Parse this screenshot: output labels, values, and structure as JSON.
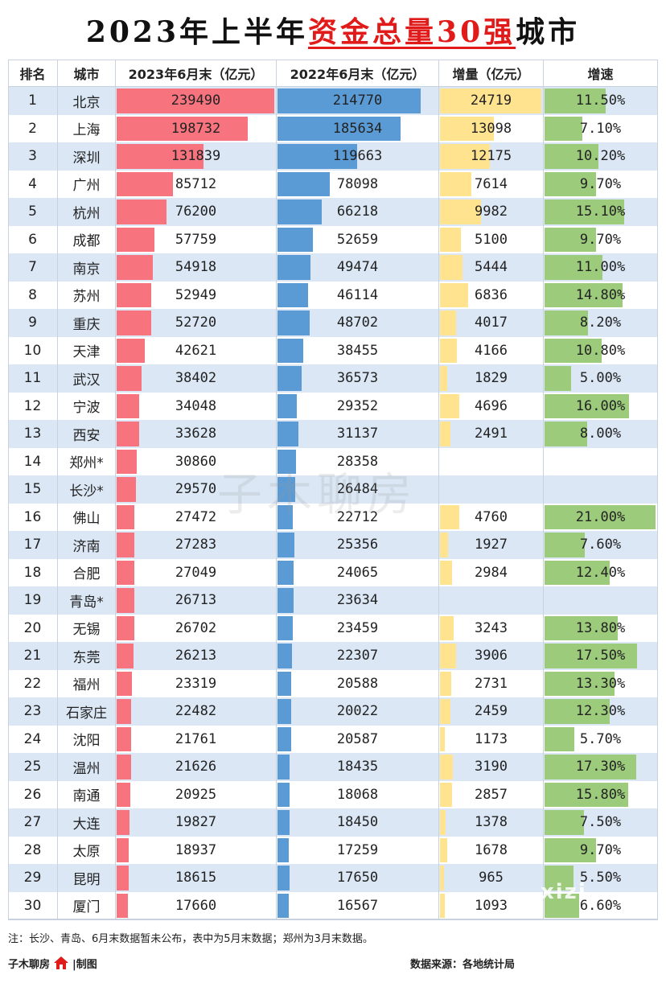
{
  "title": {
    "part1": "2023年上半年",
    "part2": "资金总量30强",
    "part3": "城市"
  },
  "headers": {
    "rank": "排名",
    "city": "城市",
    "y2023": "2023年6月末（亿元）",
    "y2022": "2022年6月末（亿元）",
    "inc": "增量（亿元）",
    "rate": "增速"
  },
  "colors": {
    "red_bar": "#f7747f",
    "blue_bar": "#5b9bd5",
    "yellow_bar": "#ffe38f",
    "green_bar": "#9ccb7c",
    "row_alt": "#dbe7f5",
    "grid": "#c9d3df"
  },
  "chart_data": {
    "type": "table",
    "rows": [
      {
        "rank": "1",
        "city": "北京",
        "y2023": 239490,
        "y2022": 214770,
        "inc": 24719,
        "rate": "11.50%"
      },
      {
        "rank": "2",
        "city": "上海",
        "y2023": 198732,
        "y2022": 185634,
        "inc": 13098,
        "rate": "7.10%"
      },
      {
        "rank": "3",
        "city": "深圳",
        "y2023": 131839,
        "y2022": 119663,
        "inc": 12175,
        "rate": "10.20%"
      },
      {
        "rank": "4",
        "city": "广州",
        "y2023": 85712,
        "y2022": 78098,
        "inc": 7614,
        "rate": "9.70%"
      },
      {
        "rank": "5",
        "city": "杭州",
        "y2023": 76200,
        "y2022": 66218,
        "inc": 9982,
        "rate": "15.10%"
      },
      {
        "rank": "6",
        "city": "成都",
        "y2023": 57759,
        "y2022": 52659,
        "inc": 5100,
        "rate": "9.70%"
      },
      {
        "rank": "7",
        "city": "南京",
        "y2023": 54918,
        "y2022": 49474,
        "inc": 5444,
        "rate": "11.00%"
      },
      {
        "rank": "8",
        "city": "苏州",
        "y2023": 52949,
        "y2022": 46114,
        "inc": 6836,
        "rate": "14.80%"
      },
      {
        "rank": "9",
        "city": "重庆",
        "y2023": 52720,
        "y2022": 48702,
        "inc": 4017,
        "rate": "8.20%"
      },
      {
        "rank": "10",
        "city": "天津",
        "y2023": 42621,
        "y2022": 38455,
        "inc": 4166,
        "rate": "10.80%"
      },
      {
        "rank": "11",
        "city": "武汉",
        "y2023": 38402,
        "y2022": 36573,
        "inc": 1829,
        "rate": "5.00%"
      },
      {
        "rank": "12",
        "city": "宁波",
        "y2023": 34048,
        "y2022": 29352,
        "inc": 4696,
        "rate": "16.00%"
      },
      {
        "rank": "13",
        "city": "西安",
        "y2023": 33628,
        "y2022": 31137,
        "inc": 2491,
        "rate": "8.00%"
      },
      {
        "rank": "14",
        "city": "郑州*",
        "y2023": 30860,
        "y2022": 28358,
        "inc": null,
        "rate": ""
      },
      {
        "rank": "15",
        "city": "长沙*",
        "y2023": 29570,
        "y2022": 26484,
        "inc": null,
        "rate": ""
      },
      {
        "rank": "16",
        "city": "佛山",
        "y2023": 27472,
        "y2022": 22712,
        "inc": 4760,
        "rate": "21.00%"
      },
      {
        "rank": "17",
        "city": "济南",
        "y2023": 27283,
        "y2022": 25356,
        "inc": 1927,
        "rate": "7.60%"
      },
      {
        "rank": "18",
        "city": "合肥",
        "y2023": 27049,
        "y2022": 24065,
        "inc": 2984,
        "rate": "12.40%"
      },
      {
        "rank": "19",
        "city": "青岛*",
        "y2023": 26713,
        "y2022": 23634,
        "inc": null,
        "rate": ""
      },
      {
        "rank": "20",
        "city": "无锡",
        "y2023": 26702,
        "y2022": 23459,
        "inc": 3243,
        "rate": "13.80%"
      },
      {
        "rank": "21",
        "city": "东莞",
        "y2023": 26213,
        "y2022": 22307,
        "inc": 3906,
        "rate": "17.50%"
      },
      {
        "rank": "22",
        "city": "福州",
        "y2023": 23319,
        "y2022": 20588,
        "inc": 2731,
        "rate": "13.30%"
      },
      {
        "rank": "23",
        "city": "石家庄",
        "y2023": 22482,
        "y2022": 20022,
        "inc": 2459,
        "rate": "12.30%"
      },
      {
        "rank": "24",
        "city": "沈阳",
        "y2023": 21761,
        "y2022": 20587,
        "inc": 1173,
        "rate": "5.70%"
      },
      {
        "rank": "25",
        "city": "温州",
        "y2023": 21626,
        "y2022": 18435,
        "inc": 3190,
        "rate": "17.30%"
      },
      {
        "rank": "26",
        "city": "南通",
        "y2023": 20925,
        "y2022": 18068,
        "inc": 2857,
        "rate": "15.80%"
      },
      {
        "rank": "27",
        "city": "大连",
        "y2023": 19827,
        "y2022": 18450,
        "inc": 1378,
        "rate": "7.50%"
      },
      {
        "rank": "28",
        "city": "太原",
        "y2023": 18937,
        "y2022": 17259,
        "inc": 1678,
        "rate": "9.70%"
      },
      {
        "rank": "29",
        "city": "昆明",
        "y2023": 18615,
        "y2022": 17650,
        "inc": 965,
        "rate": "5.50%"
      },
      {
        "rank": "30",
        "city": "厦门",
        "y2023": 17660,
        "y2022": 16567,
        "inc": 1093,
        "rate": "6.60%"
      }
    ]
  },
  "note": "注：长沙、青岛、6月末数据暂未公布，表中为5月末数据；郑州为3月末数据。",
  "footer": {
    "author": "子木聊房",
    "made": "|制图",
    "source": "数据来源：各地统计局"
  },
  "watermark": "子木聊房",
  "watermark2": "xizi"
}
